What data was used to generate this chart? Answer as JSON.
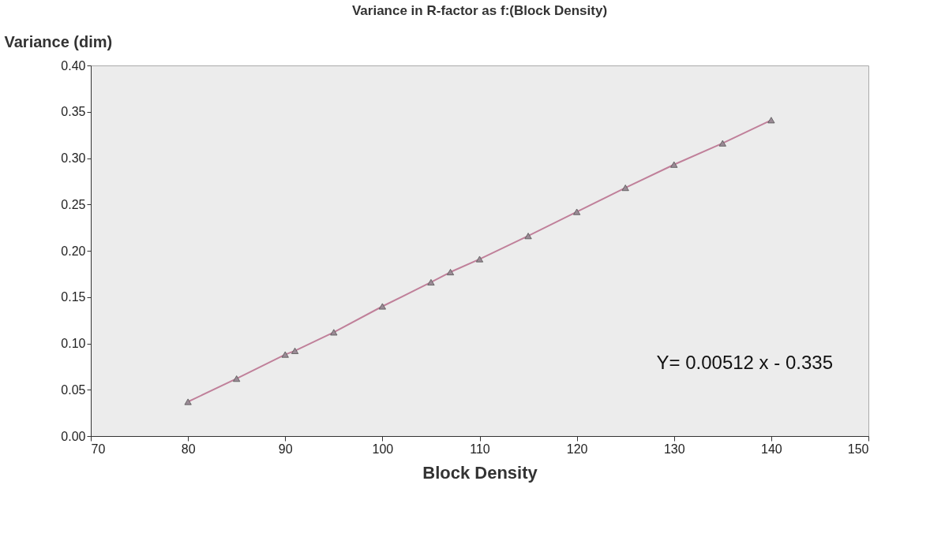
{
  "chart_data": {
    "type": "line",
    "title": "Variance in R-factor as   f:(Block Density)",
    "xlabel": "Block Density",
    "ylabel": "Variance (dim)",
    "x": [
      80,
      85,
      90,
      91,
      95,
      100,
      105,
      107,
      110,
      115,
      120,
      125,
      130,
      135,
      140
    ],
    "series": [
      {
        "color": "#c0809a",
        "values": [
          0.037,
          0.062,
          0.088,
          0.092,
          0.112,
          0.14,
          0.166,
          0.177,
          0.191,
          0.216,
          0.242,
          0.268,
          0.293,
          0.316,
          0.341
        ]
      }
    ],
    "xlim": [
      70,
      150
    ],
    "xticks": [
      70,
      80,
      90,
      100,
      110,
      120,
      130,
      140,
      150
    ],
    "ylim": [
      0,
      0.4
    ],
    "yticks": [
      {
        "value": 0,
        "label": "0.00"
      },
      {
        "value": 0.05,
        "label": "0.05"
      },
      {
        "value": 0.1,
        "label": "0.10"
      },
      {
        "value": 0.15,
        "label": "0.15"
      },
      {
        "value": 0.2,
        "label": "0.20"
      },
      {
        "value": 0.25,
        "label": "0.25"
      },
      {
        "value": 0.3,
        "label": "0.30"
      },
      {
        "value": 0.35,
        "label": "0.35"
      },
      {
        "value": 0.4,
        "label": "0.40"
      }
    ],
    "annotations": [
      "Y= 0.00512 x -  0.335"
    ],
    "marker": "triangle",
    "line_style": "solid",
    "grid": false
  }
}
